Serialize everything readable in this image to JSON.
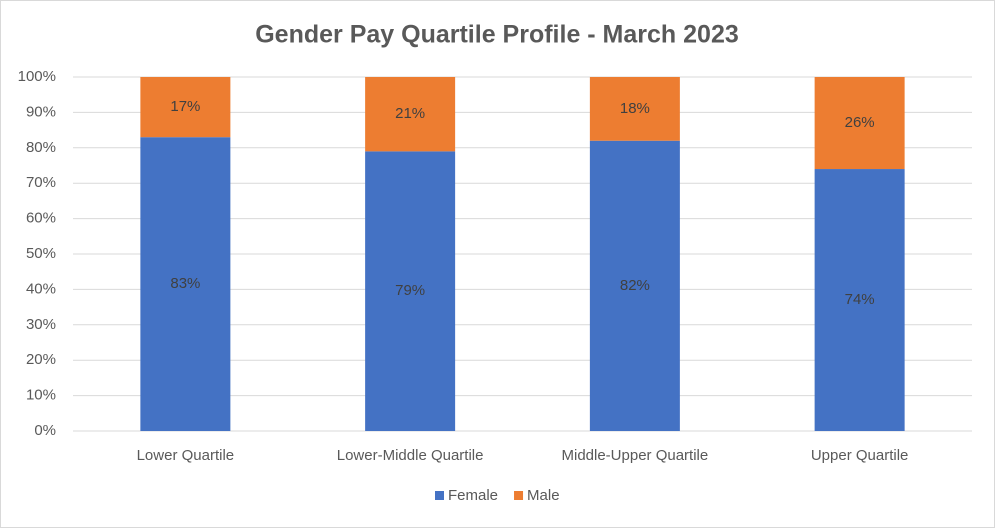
{
  "chart_data": {
    "type": "stacked_bar",
    "title": "Gender Pay Quartile Profile - March 2023",
    "categories": [
      "Lower Quartile",
      "Lower-Middle Quartile",
      "Middle-Upper Quartile",
      "Upper Quartile"
    ],
    "series": [
      {
        "name": "Female",
        "color": "#4472c4",
        "values": [
          83,
          79,
          82,
          74
        ],
        "value_labels": [
          "83%",
          "79%",
          "82%",
          "74%"
        ]
      },
      {
        "name": "Male",
        "color": "#ed7d31",
        "values": [
          17,
          21,
          18,
          26
        ],
        "value_labels": [
          "17%",
          "21%",
          "18%",
          "26%"
        ]
      }
    ],
    "ylim": [
      0,
      100
    ],
    "yticks": [
      {
        "value": 0,
        "label": "0%"
      },
      {
        "value": 10,
        "label": "10%"
      },
      {
        "value": 20,
        "label": "20%"
      },
      {
        "value": 30,
        "label": "30%"
      },
      {
        "value": 40,
        "label": "40%"
      },
      {
        "value": 50,
        "label": "50%"
      },
      {
        "value": 60,
        "label": "60%"
      },
      {
        "value": 70,
        "label": "70%"
      },
      {
        "value": 80,
        "label": "80%"
      },
      {
        "value": 90,
        "label": "90%"
      },
      {
        "value": 100,
        "label": "100%"
      }
    ],
    "grid": true,
    "legend": "bottom"
  }
}
